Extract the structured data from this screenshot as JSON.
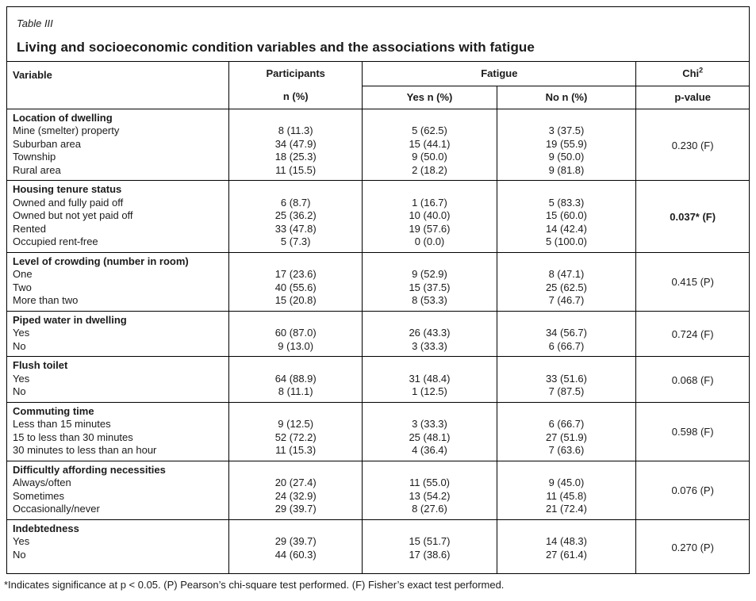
{
  "table_label": "Table III",
  "title": "Living and socioeconomic condition variables and the associations with fatigue",
  "columns": {
    "variable": "Variable",
    "participants_line1": "Participants",
    "participants_line2": "n (%)",
    "fatigue": "Fatigue",
    "fatigue_yes": "Yes n (%)",
    "fatigue_no": "No n (%)",
    "chi_base": "Chi",
    "chi_sup": "2",
    "p_value": "p-value"
  },
  "sections": [
    {
      "variable": "Location of dwelling",
      "p_value": "0.230 (F)",
      "p_bold": false,
      "rows": [
        {
          "label": "Mine (smelter) property",
          "participants": "8 (11.3)",
          "yes": "5 (62.5)",
          "no": "3 (37.5)"
        },
        {
          "label": "Suburban area",
          "participants": "34 (47.9)",
          "yes": "15 (44.1)",
          "no": "19 (55.9)"
        },
        {
          "label": "Township",
          "participants": "18 (25.3)",
          "yes": "9 (50.0)",
          "no": "9 (50.0)"
        },
        {
          "label": "Rural area",
          "participants": "11 (15.5)",
          "yes": "2 (18.2)",
          "no": "9 (81.8)"
        }
      ]
    },
    {
      "variable": "Housing tenure status",
      "p_value": "0.037* (F)",
      "p_bold": true,
      "rows": [
        {
          "label": "Owned and fully paid off",
          "participants": "6 (8.7)",
          "yes": "1 (16.7)",
          "no": "5 (83.3)"
        },
        {
          "label": "Owned but not yet paid off",
          "participants": "25 (36.2)",
          "yes": "10 (40.0)",
          "no": "15 (60.0)"
        },
        {
          "label": "Rented",
          "participants": "33 (47.8)",
          "yes": "19 (57.6)",
          "no": "14 (42.4)"
        },
        {
          "label": "Occupied rent-free",
          "participants": "5 (7.3)",
          "yes": "0 (0.0)",
          "no": "5 (100.0)"
        }
      ]
    },
    {
      "variable": "Level of crowding (number in room)",
      "p_value": "0.415 (P)",
      "p_bold": false,
      "rows": [
        {
          "label": "One",
          "participants": "17 (23.6)",
          "yes": "9 (52.9)",
          "no": "8 (47.1)"
        },
        {
          "label": "Two",
          "participants": "40 (55.6)",
          "yes": "15 (37.5)",
          "no": "25 (62.5)"
        },
        {
          "label": "More than two",
          "participants": "15 (20.8)",
          "yes": "8 (53.3)",
          "no": "7 (46.7)"
        }
      ]
    },
    {
      "variable": "Piped water in dwelling",
      "p_value": "0.724 (F)",
      "p_bold": false,
      "rows": [
        {
          "label": "Yes",
          "participants": "60 (87.0)",
          "yes": "26 (43.3)",
          "no": "34 (56.7)"
        },
        {
          "label": "No",
          "participants": "9 (13.0)",
          "yes": "3 (33.3)",
          "no": "6 (66.7)"
        }
      ]
    },
    {
      "variable": "Flush toilet",
      "p_value": "0.068 (F)",
      "p_bold": false,
      "rows": [
        {
          "label": "Yes",
          "participants": "64 (88.9)",
          "yes": "31 (48.4)",
          "no": "33 (51.6)"
        },
        {
          "label": "No",
          "participants": "8 (11.1)",
          "yes": "1 (12.5)",
          "no": "7 (87.5)"
        }
      ]
    },
    {
      "variable": "Commuting time",
      "p_value": "0.598 (F)",
      "p_bold": false,
      "rows": [
        {
          "label": "Less than 15 minutes",
          "participants": "9 (12.5)",
          "yes": "3 (33.3)",
          "no": "6 (66.7)"
        },
        {
          "label": "15 to less than 30 minutes",
          "participants": "52 (72.2)",
          "yes": "25 (48.1)",
          "no": "27 (51.9)"
        },
        {
          "label": "30 minutes to less than an hour",
          "participants": "11 (15.3)",
          "yes": "4 (36.4)",
          "no": "7 (63.6)"
        }
      ]
    },
    {
      "variable": "Difficultly affording necessities",
      "p_value": "0.076 (P)",
      "p_bold": false,
      "rows": [
        {
          "label": "Always/often",
          "participants": "20 (27.4)",
          "yes": "11 (55.0)",
          "no": "9 (45.0)"
        },
        {
          "label": "Sometimes",
          "participants": "24 (32.9)",
          "yes": "13 (54.2)",
          "no": "11 (45.8)"
        },
        {
          "label": "Occasionally/never",
          "participants": "29 (39.7)",
          "yes": "8 (27.6)",
          "no": "21 (72.4)"
        }
      ]
    },
    {
      "variable": "Indebtedness",
      "p_value": "0.270 (P)",
      "p_bold": false,
      "rows": [
        {
          "label": "Yes",
          "participants": "29 (39.7)",
          "yes": "15 (51.7)",
          "no": "14 (48.3)"
        },
        {
          "label": "No",
          "participants": "44 (60.3)",
          "yes": "17 (38.6)",
          "no": "27 (61.4)"
        }
      ]
    }
  ],
  "footnote": "*Indicates significance at p < 0.05. (P) Pearson’s chi-square test performed. (F) Fisher’s exact test performed.",
  "colors": {
    "text": "#1b1b1b",
    "border": "#000000",
    "background": "#ffffff"
  }
}
